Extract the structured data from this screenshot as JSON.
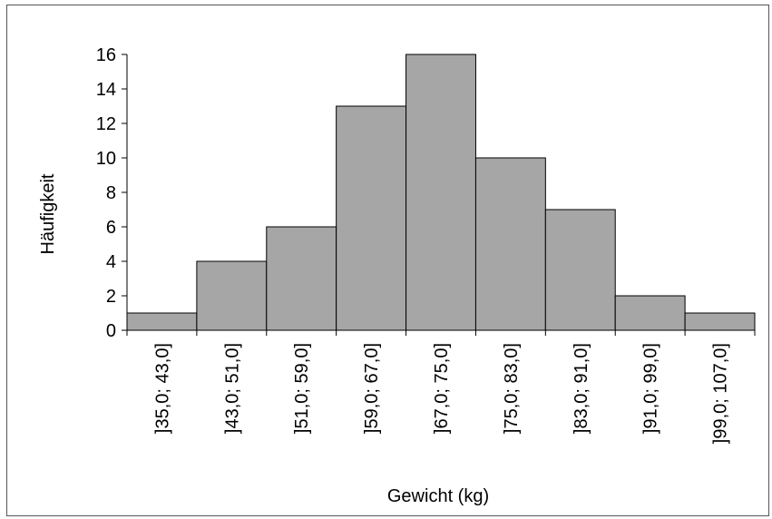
{
  "chart_data": {
    "type": "bar",
    "title": "",
    "xlabel": "Gewicht (kg)",
    "ylabel": "Häufigkeit",
    "categories": [
      "]35,0; 43,0]",
      "]43,0; 51,0]",
      "]51,0; 59,0]",
      "]59,0; 67,0]",
      "]67,0; 75,0]",
      "]75,0; 83,0]",
      "]83,0; 91,0]",
      "]91,0; 99,0]",
      "]99,0; 107,0]"
    ],
    "values": [
      1,
      4,
      6,
      13,
      16,
      10,
      7,
      2,
      1
    ],
    "ylim": [
      0,
      16
    ],
    "yticks": [
      0,
      2,
      4,
      6,
      8,
      10,
      12,
      14,
      16
    ],
    "grid": false,
    "legend": "none",
    "bar_color": "#a6a6a6",
    "edge_color": "#000000"
  }
}
